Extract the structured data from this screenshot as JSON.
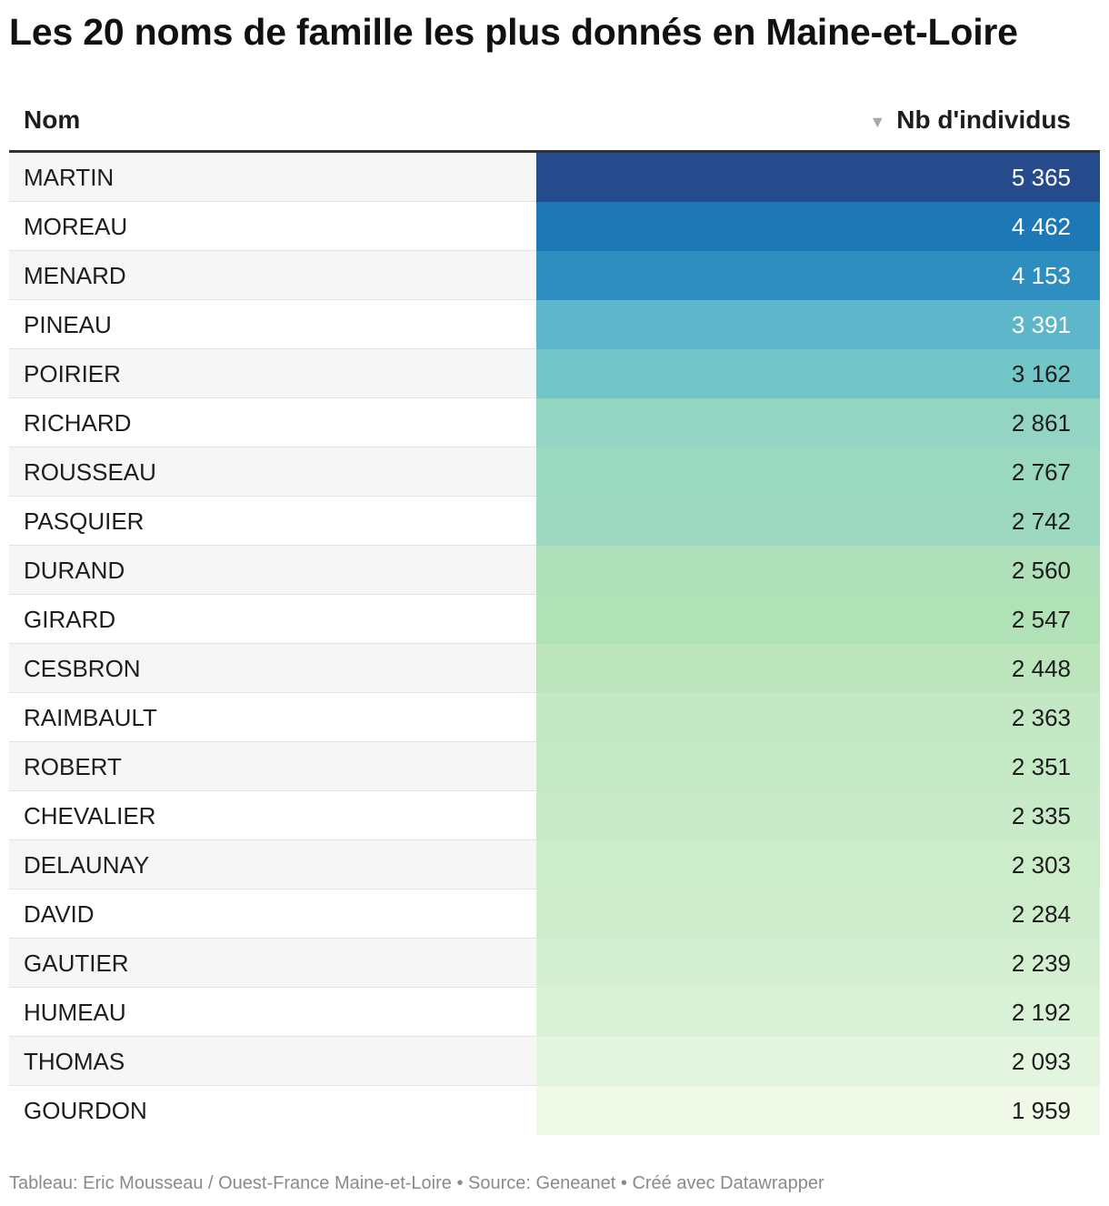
{
  "title": "Les 20 noms de famille les plus donnés en Maine-et-Loire",
  "footer": "Tableau: Eric Mousseau / Ouest-France Maine-et-Loire • Source: Geneanet • Créé avec Datawrapper",
  "icons": {
    "sort": "sort-descending-icon"
  },
  "chart_data": {
    "type": "table",
    "columns": [
      "Nom",
      "Nb d'individus"
    ],
    "sort": {
      "column": "Nb d'individus",
      "order": "descending"
    },
    "color_scale": [
      "#f0f9e8",
      "#bae4bc",
      "#7bccc4",
      "#2b8cbe",
      "#253494"
    ],
    "rows": [
      {
        "name": "MARTIN",
        "value": 5365,
        "display": "5 365",
        "color": "#264b8d"
      },
      {
        "name": "MOREAU",
        "value": 4462,
        "display": "4 462",
        "color": "#1f78b6"
      },
      {
        "name": "MENARD",
        "value": 4153,
        "display": "4 153",
        "color": "#2f8ec0"
      },
      {
        "name": "PINEAU",
        "value": 3391,
        "display": "3 391",
        "color": "#5db6c9"
      },
      {
        "name": "POIRIER",
        "value": 3162,
        "display": "3 162",
        "color": "#73c6c7"
      },
      {
        "name": "RICHARD",
        "value": 2861,
        "display": "2 861",
        "color": "#93d5c2"
      },
      {
        "name": "ROUSSEAU",
        "value": 2767,
        "display": "2 767",
        "color": "#9ad8c0"
      },
      {
        "name": "PASQUIER",
        "value": 2742,
        "display": "2 742",
        "color": "#9cd9c0"
      },
      {
        "name": "DURAND",
        "value": 2560,
        "display": "2 560",
        "color": "#afe0b9"
      },
      {
        "name": "GIRARD",
        "value": 2547,
        "display": "2 547",
        "color": "#b1e1b7"
      },
      {
        "name": "CESBRON",
        "value": 2448,
        "display": "2 448",
        "color": "#bce5bd"
      },
      {
        "name": "RAIMBAULT",
        "value": 2363,
        "display": "2 363",
        "color": "#c4e8c3"
      },
      {
        "name": "ROBERT",
        "value": 2351,
        "display": "2 351",
        "color": "#c5e9c5"
      },
      {
        "name": "CHEVALIER",
        "value": 2335,
        "display": "2 335",
        "color": "#c8eac8"
      },
      {
        "name": "DELAUNAY",
        "value": 2303,
        "display": "2 303",
        "color": "#ccecca"
      },
      {
        "name": "DAVID",
        "value": 2284,
        "display": "2 284",
        "color": "#cfedcc"
      },
      {
        "name": "GAUTIER",
        "value": 2239,
        "display": "2 239",
        "color": "#d4efd1"
      },
      {
        "name": "HUMEAU",
        "value": 2192,
        "display": "2 192",
        "color": "#d9f1d6"
      },
      {
        "name": "THOMAS",
        "value": 2093,
        "display": "2 093",
        "color": "#e3f5df"
      },
      {
        "name": "GOURDON",
        "value": 1959,
        "display": "1 959",
        "color": "#f0f9e8"
      }
    ]
  }
}
